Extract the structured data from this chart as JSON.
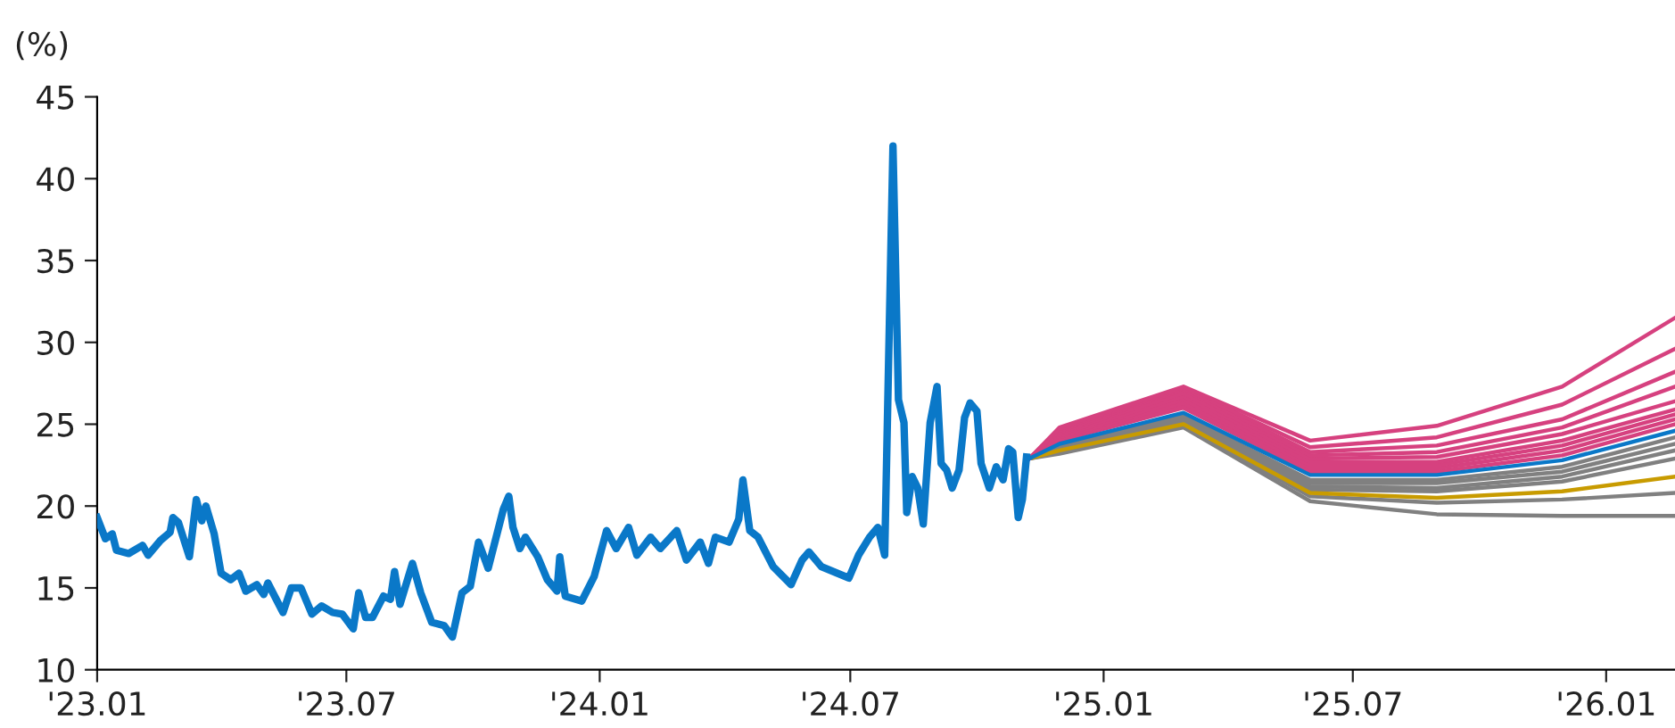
{
  "chart_data": {
    "type": "line",
    "ylabel": "(%)",
    "xlim": [
      "2023-01-01",
      "2026-02-20"
    ],
    "ylim": [
      10,
      45
    ],
    "yticks": [
      10,
      15,
      20,
      25,
      30,
      35,
      40,
      45
    ],
    "xticks": [
      {
        "value": "2023-01-01",
        "label": "'23.01"
      },
      {
        "value": "2023-07-01",
        "label": "'23.07"
      },
      {
        "value": "2024-01-01",
        "label": "'24.01"
      },
      {
        "value": "2024-07-01",
        "label": "'24.07"
      },
      {
        "value": "2025-01-01",
        "label": "'25.01"
      },
      {
        "value": "2025-07-01",
        "label": "'25.07"
      },
      {
        "value": "2026-01-01",
        "label": "'26.01"
      }
    ],
    "grid": false,
    "legend": false,
    "marker": "none",
    "line_style": "solid",
    "series": [
      {
        "color": "#808080",
        "x": [
          "2024-11-08",
          "2024-11-30",
          "2025-02-28",
          "2025-05-31",
          "2025-08-31",
          "2025-11-30",
          "2026-02-20"
        ],
        "values": [
          22.9,
          23.2,
          24.8,
          20.3,
          19.5,
          19.4,
          19.4
        ]
      },
      {
        "color": "#808080",
        "x": [
          "2024-11-08",
          "2024-11-30",
          "2025-02-28",
          "2025-05-31",
          "2025-08-31",
          "2025-11-30",
          "2026-02-20"
        ],
        "values": [
          22.9,
          23.3,
          24.9,
          20.6,
          20.2,
          20.4,
          20.8
        ]
      },
      {
        "color": "#808080",
        "x": [
          "2024-11-08",
          "2024-11-30",
          "2025-02-28",
          "2025-05-31",
          "2025-08-31",
          "2025-11-30",
          "2026-02-20"
        ],
        "values": [
          22.9,
          23.5,
          25.2,
          21.0,
          20.9,
          21.5,
          22.9
        ]
      },
      {
        "color": "#808080",
        "x": [
          "2024-11-08",
          "2024-11-30",
          "2025-02-28",
          "2025-05-31",
          "2025-08-31",
          "2025-11-30",
          "2026-02-20"
        ],
        "values": [
          22.9,
          23.6,
          25.3,
          21.2,
          21.1,
          21.8,
          23.4
        ]
      },
      {
        "color": "#808080",
        "x": [
          "2024-11-08",
          "2024-11-30",
          "2025-02-28",
          "2025-05-31",
          "2025-08-31",
          "2025-11-30",
          "2026-02-20"
        ],
        "values": [
          22.9,
          23.6,
          25.4,
          21.4,
          21.4,
          22.1,
          23.8
        ]
      },
      {
        "color": "#808080",
        "x": [
          "2024-11-08",
          "2024-11-30",
          "2025-02-28",
          "2025-05-31",
          "2025-08-31",
          "2025-11-30",
          "2026-02-20"
        ],
        "values": [
          22.9,
          23.7,
          25.5,
          21.6,
          21.6,
          22.4,
          24.2
        ]
      },
      {
        "color": "#c89b00",
        "x": [
          "2024-11-08",
          "2024-11-30",
          "2025-02-28",
          "2025-05-31",
          "2025-08-31",
          "2025-11-30",
          "2026-02-20"
        ],
        "values": [
          22.9,
          23.4,
          25.0,
          20.8,
          20.5,
          20.9,
          21.8
        ]
      },
      {
        "color": "#d6417f",
        "x": [
          "2024-11-08",
          "2024-11-30",
          "2025-02-28",
          "2025-05-31",
          "2025-08-31",
          "2025-11-30",
          "2026-02-20"
        ],
        "values": [
          22.9,
          24.0,
          26.0,
          22.1,
          22.1,
          23.1,
          25.0
        ]
      },
      {
        "color": "#d6417f",
        "x": [
          "2024-11-08",
          "2024-11-30",
          "2025-02-28",
          "2025-05-31",
          "2025-08-31",
          "2025-11-30",
          "2026-02-20"
        ],
        "values": [
          22.9,
          24.1,
          26.1,
          22.3,
          22.3,
          23.4,
          25.3
        ]
      },
      {
        "color": "#d6417f",
        "x": [
          "2024-11-08",
          "2024-11-30",
          "2025-02-28",
          "2025-05-31",
          "2025-08-31",
          "2025-11-30",
          "2026-02-20"
        ],
        "values": [
          22.9,
          24.2,
          26.3,
          22.5,
          22.5,
          23.7,
          25.6
        ]
      },
      {
        "color": "#d6417f",
        "x": [
          "2024-11-08",
          "2024-11-30",
          "2025-02-28",
          "2025-05-31",
          "2025-08-31",
          "2025-11-30",
          "2026-02-20"
        ],
        "values": [
          22.9,
          24.3,
          26.5,
          22.7,
          22.7,
          24.0,
          25.9
        ]
      },
      {
        "color": "#d6417f",
        "x": [
          "2024-11-08",
          "2024-11-30",
          "2025-02-28",
          "2025-05-31",
          "2025-08-31",
          "2025-11-30",
          "2026-02-20"
        ],
        "values": [
          22.9,
          24.4,
          26.7,
          22.9,
          23.0,
          24.4,
          26.4
        ]
      },
      {
        "color": "#d6417f",
        "x": [
          "2024-11-08",
          "2024-11-30",
          "2025-02-28",
          "2025-05-31",
          "2025-08-31",
          "2025-11-30",
          "2026-02-20"
        ],
        "values": [
          22.9,
          24.5,
          26.9,
          23.1,
          23.3,
          24.8,
          27.3
        ]
      },
      {
        "color": "#d6417f",
        "x": [
          "2024-11-08",
          "2024-11-30",
          "2025-02-28",
          "2025-05-31",
          "2025-08-31",
          "2025-11-30",
          "2026-02-20"
        ],
        "values": [
          22.9,
          24.6,
          27.1,
          23.3,
          23.7,
          25.3,
          28.2
        ]
      },
      {
        "color": "#d6417f",
        "x": [
          "2024-11-08",
          "2024-11-30",
          "2025-02-28",
          "2025-05-31",
          "2025-08-31",
          "2025-11-30",
          "2026-02-20"
        ],
        "values": [
          22.9,
          24.7,
          27.2,
          23.6,
          24.2,
          26.2,
          29.6
        ]
      },
      {
        "color": "#d6417f",
        "x": [
          "2024-11-08",
          "2024-11-30",
          "2025-02-28",
          "2025-05-31",
          "2025-08-31",
          "2025-11-30",
          "2026-02-20"
        ],
        "values": [
          22.9,
          24.8,
          27.3,
          24.0,
          24.9,
          27.3,
          31.5
        ]
      },
      {
        "color": "#0a78c8",
        "x": [
          "2024-11-08",
          "2024-11-30",
          "2025-02-28",
          "2025-05-31",
          "2025-08-31",
          "2025-11-30",
          "2026-02-20"
        ],
        "values": [
          22.9,
          23.8,
          25.7,
          21.9,
          21.9,
          22.8,
          24.6
        ]
      },
      {
        "color": "#0a78c8",
        "x": [
          "2023-01-01",
          "2023-01-07",
          "2023-01-12",
          "2023-01-15",
          "2023-01-24",
          "2023-02-03",
          "2023-02-07",
          "2023-02-16",
          "2023-02-23",
          "2023-02-25",
          "2023-03-01",
          "2023-03-09",
          "2023-03-14",
          "2023-03-18",
          "2023-03-21",
          "2023-03-27",
          "2023-04-01",
          "2023-04-08",
          "2023-04-14",
          "2023-04-19",
          "2023-04-27",
          "2023-05-02",
          "2023-05-05",
          "2023-05-16",
          "2023-05-22",
          "2023-05-29",
          "2023-06-06",
          "2023-06-13",
          "2023-06-21",
          "2023-06-28",
          "2023-07-06",
          "2023-07-10",
          "2023-07-15",
          "2023-07-20",
          "2023-07-28",
          "2023-08-02",
          "2023-08-05",
          "2023-08-09",
          "2023-08-18",
          "2023-08-24",
          "2023-09-01",
          "2023-09-10",
          "2023-09-16",
          "2023-09-23",
          "2023-09-29",
          "2023-10-05",
          "2023-10-12",
          "2023-10-23",
          "2023-10-27",
          "2023-10-30",
          "2023-11-04",
          "2023-11-08",
          "2023-11-17",
          "2023-11-24",
          "2023-12-01",
          "2023-12-03",
          "2023-12-07",
          "2023-12-19",
          "2023-12-28",
          "2024-01-06",
          "2024-01-13",
          "2024-01-22",
          "2024-01-28",
          "2024-02-07",
          "2024-02-14",
          "2024-02-26",
          "2024-03-04",
          "2024-03-14",
          "2024-03-20",
          "2024-03-25",
          "2024-04-04",
          "2024-04-11",
          "2024-04-14",
          "2024-04-19",
          "2024-04-25",
          "2024-05-06",
          "2024-05-19",
          "2024-05-27",
          "2024-06-01",
          "2024-06-10",
          "2024-06-30",
          "2024-07-07",
          "2024-07-15",
          "2024-07-21",
          "2024-07-26",
          "2024-08-01",
          "2024-08-05",
          "2024-08-09",
          "2024-08-11",
          "2024-08-15",
          "2024-08-19",
          "2024-08-23",
          "2024-08-28",
          "2024-09-02",
          "2024-09-05",
          "2024-09-09",
          "2024-09-13",
          "2024-09-18",
          "2024-09-22",
          "2024-09-26",
          "2024-10-01",
          "2024-10-04",
          "2024-10-10",
          "2024-10-15",
          "2024-10-20",
          "2024-10-24",
          "2024-10-27",
          "2024-10-31",
          "2024-11-03",
          "2024-11-06"
        ],
        "values": [
          19.3,
          18.0,
          18.3,
          17.3,
          17.1,
          17.6,
          17.0,
          17.9,
          18.4,
          19.3,
          19.0,
          16.9,
          20.4,
          19.1,
          20.0,
          18.3,
          15.9,
          15.5,
          15.9,
          14.8,
          15.2,
          14.6,
          15.3,
          13.5,
          15.0,
          15.0,
          13.4,
          13.9,
          13.5,
          13.4,
          12.5,
          14.7,
          13.2,
          13.2,
          14.5,
          14.3,
          16.0,
          14.0,
          16.5,
          14.7,
          12.9,
          12.7,
          12.0,
          14.7,
          15.1,
          17.8,
          16.2,
          19.8,
          20.6,
          18.7,
          17.4,
          18.1,
          16.9,
          15.5,
          14.8,
          16.9,
          14.5,
          14.2,
          15.7,
          18.5,
          17.4,
          18.7,
          17.0,
          18.1,
          17.4,
          18.5,
          16.7,
          17.8,
          16.5,
          18.1,
          17.8,
          19.2,
          21.6,
          18.5,
          18.1,
          16.3,
          15.2,
          16.7,
          17.2,
          16.3,
          15.6,
          17.0,
          18.1,
          18.7,
          17.0,
          42.0,
          26.5,
          25.1,
          19.6,
          21.8,
          21.1,
          18.9,
          25.1,
          27.3,
          22.6,
          22.2,
          21.1,
          22.2,
          25.4,
          26.3,
          25.8,
          22.6,
          21.1,
          22.4,
          21.6,
          23.5,
          23.3,
          19.3,
          20.4,
          23.0
        ]
      }
    ]
  }
}
